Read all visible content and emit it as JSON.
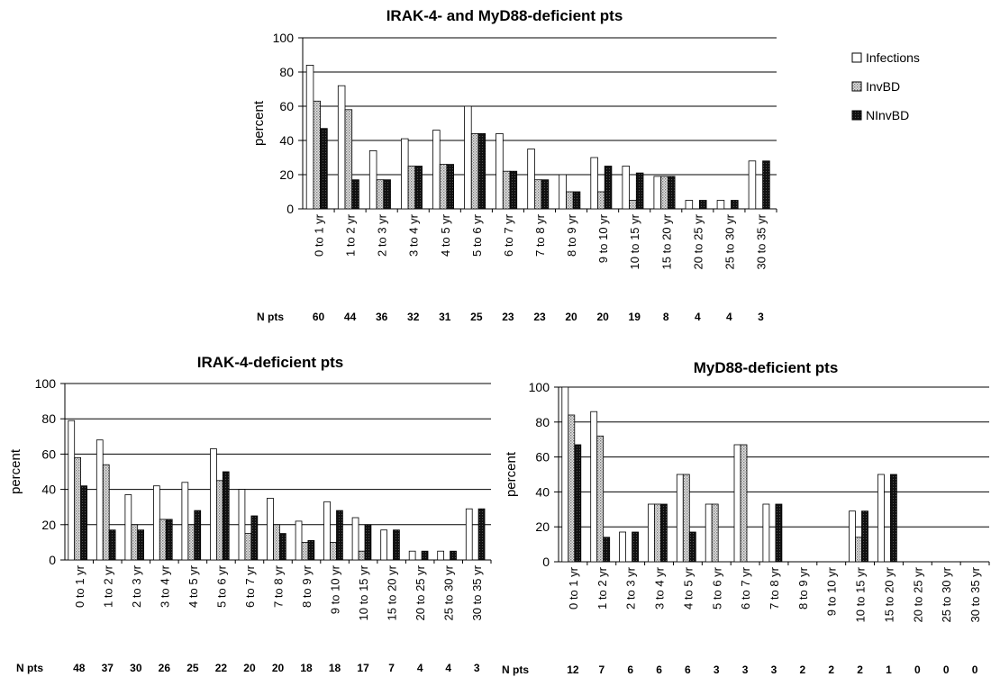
{
  "colors": {
    "Infections": "#ffffff",
    "InvBD": "#c9c9c9",
    "NInvBD": "#1a1a1a",
    "grid": "#000000"
  },
  "legend": {
    "placement": "right of top chart",
    "items": [
      "Infections",
      "InvBD",
      "NInvBD"
    ]
  },
  "chart_data": [
    {
      "type": "bar",
      "title": "IRAK-4- and MyD88-deficient pts",
      "ylabel": "percent",
      "ylim": [
        0,
        100
      ],
      "yticks": [
        0,
        20,
        40,
        60,
        80,
        100
      ],
      "grid": true,
      "categories": [
        "0 to 1 yr",
        "1 to 2 yr",
        "2 to 3 yr",
        "3 to 4 yr",
        "4 to 5 yr",
        "5 to 6 yr",
        "6 to 7 yr",
        "7 to 8 yr",
        "8 to 9 yr",
        "9 to 10 yr",
        "10 to 15 yr",
        "15 to 20 yr",
        "20 to 25 yr",
        "25 to 30 yr",
        "30 to 35 yr"
      ],
      "series": [
        {
          "name": "Infections",
          "values": [
            84,
            72,
            34,
            41,
            46,
            60,
            44,
            35,
            20,
            30,
            25,
            19,
            5,
            5,
            28
          ]
        },
        {
          "name": "InvBD",
          "values": [
            63,
            58,
            17,
            25,
            26,
            44,
            22,
            17,
            10,
            10,
            5,
            19,
            0,
            0,
            0
          ]
        },
        {
          "name": "NInvBD",
          "values": [
            47,
            17,
            17,
            25,
            26,
            44,
            22,
            17,
            10,
            25,
            21,
            19,
            5,
            5,
            28
          ]
        }
      ],
      "n_label": "N pts",
      "n_pts": [
        "60",
        "44",
        "36",
        "32",
        "31",
        "25",
        "23",
        "23",
        "20",
        "20",
        "19",
        "8",
        "4",
        "4",
        "3"
      ]
    },
    {
      "type": "bar",
      "title": "IRAK-4-deficient pts",
      "ylabel": "percent",
      "ylim": [
        0,
        100
      ],
      "yticks": [
        0,
        20,
        40,
        60,
        80,
        100
      ],
      "grid": true,
      "categories": [
        "0 to 1 yr",
        "1 to 2 yr",
        "2 to 3 yr",
        "3 to 4 yr",
        "4 to 5 yr",
        "5 to 6 yr",
        "6 to 7 yr",
        "7 to 8 yr",
        "8 to 9 yr",
        "9 to 10 yr",
        "10 to 15 yr",
        "15 to 20 yr",
        "20 to 25 yr",
        "25 to 30 yr",
        "30 to 35 yr"
      ],
      "series": [
        {
          "name": "Infections",
          "values": [
            79,
            68,
            37,
            42,
            44,
            63,
            40,
            35,
            22,
            33,
            24,
            17,
            5,
            5,
            29
          ]
        },
        {
          "name": "InvBD",
          "values": [
            58,
            54,
            20,
            23,
            20,
            45,
            15,
            20,
            10,
            10,
            5,
            0,
            0,
            0,
            0
          ]
        },
        {
          "name": "NInvBD",
          "values": [
            42,
            17,
            17,
            23,
            28,
            50,
            25,
            15,
            11,
            28,
            20,
            17,
            5,
            5,
            29
          ]
        }
      ],
      "n_label": "N pts",
      "n_pts": [
        "48",
        "37",
        "30",
        "26",
        "25",
        "22",
        "20",
        "20",
        "18",
        "18",
        "17",
        "7",
        "4",
        "4",
        "3"
      ]
    },
    {
      "type": "bar",
      "title": "MyD88-deficient pts",
      "ylabel": "percent",
      "ylim": [
        0,
        100
      ],
      "yticks": [
        0,
        20,
        40,
        60,
        80,
        100
      ],
      "grid": true,
      "categories": [
        "0 to 1 yr",
        "1 to 2 yr",
        "2 to 3 yr",
        "3 to 4 yr",
        "4 to 5 yr",
        "5 to 6 yr",
        "6 to 7 yr",
        "7 to 8 yr",
        "8 to 9 yr",
        "9 to 10 yr",
        "10 to 15 yr",
        "15 to 20 yr",
        "20 to 25 yr",
        "25 to 30 yr",
        "30 to 35 yr"
      ],
      "series": [
        {
          "name": "Infections",
          "values": [
            100,
            86,
            17,
            33,
            50,
            33,
            67,
            33,
            0,
            0,
            29,
            50,
            0,
            0,
            0
          ]
        },
        {
          "name": "InvBD",
          "values": [
            84,
            72,
            0,
            33,
            50,
            33,
            67,
            0,
            0,
            0,
            14,
            0,
            0,
            0,
            0
          ]
        },
        {
          "name": "NInvBD",
          "values": [
            67,
            14,
            17,
            33,
            17,
            0,
            0,
            33,
            0,
            0,
            29,
            50,
            0,
            0,
            0
          ]
        }
      ],
      "n_label": "N pts",
      "n_pts": [
        "12",
        "7",
        "6",
        "6",
        "6",
        "3",
        "3",
        "3",
        "2",
        "2",
        "2",
        "1",
        "0",
        "0",
        "0"
      ]
    }
  ]
}
